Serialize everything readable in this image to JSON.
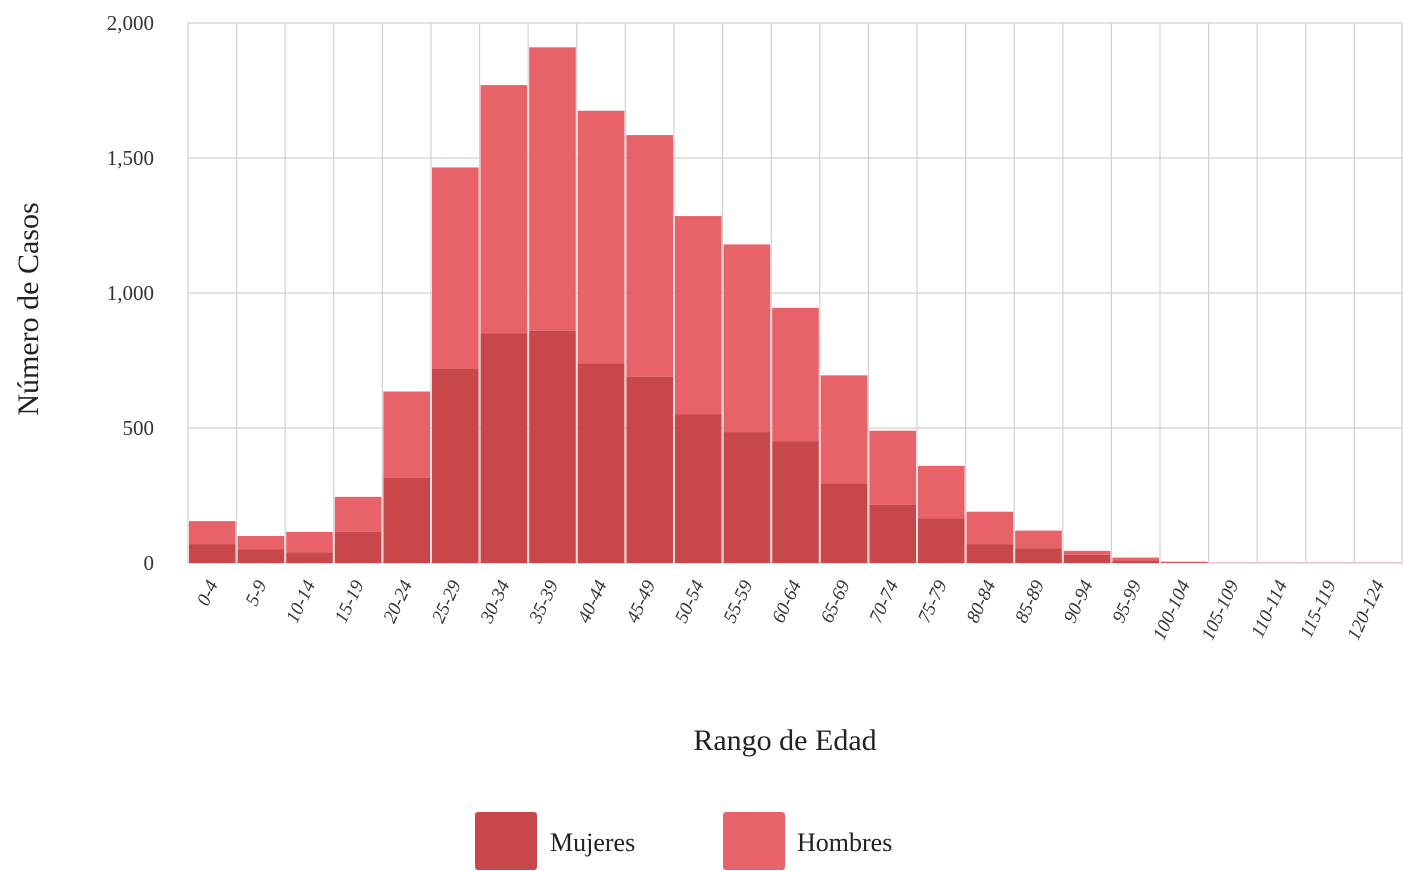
{
  "chart_data": {
    "type": "bar",
    "stacked": true,
    "xlabel": "Rango de Edad",
    "ylabel": "Número de Casos",
    "ylim": [
      0,
      2000
    ],
    "yticks": [
      0,
      500,
      1000,
      1500,
      2000
    ],
    "ytick_labels": [
      "0",
      "500",
      "1,000",
      "1,500",
      "2,000"
    ],
    "grid": true,
    "legend_position": "bottom",
    "categories": [
      "0-4",
      "5-9",
      "10-14",
      "15-19",
      "20-24",
      "25-29",
      "30-34",
      "35-39",
      "40-44",
      "45-49",
      "50-54",
      "55-59",
      "60-64",
      "65-69",
      "70-74",
      "75-79",
      "80-84",
      "85-89",
      "90-94",
      "95-99",
      "100-104",
      "105-109",
      "110-114",
      "115-119",
      "120-124"
    ],
    "series": [
      {
        "name": "Mujeres",
        "color": "#c8474b",
        "values": [
          70,
          50,
          40,
          115,
          315,
          720,
          850,
          860,
          740,
          690,
          550,
          485,
          450,
          295,
          215,
          165,
          70,
          55,
          30,
          10,
          3,
          0,
          0,
          0,
          0
        ]
      },
      {
        "name": "Hombres",
        "color": "#e8626a",
        "values": [
          85,
          50,
          75,
          130,
          320,
          745,
          920,
          1050,
          935,
          895,
          735,
          695,
          495,
          400,
          275,
          195,
          120,
          65,
          15,
          10,
          2,
          1,
          1,
          1,
          1
        ]
      }
    ]
  }
}
